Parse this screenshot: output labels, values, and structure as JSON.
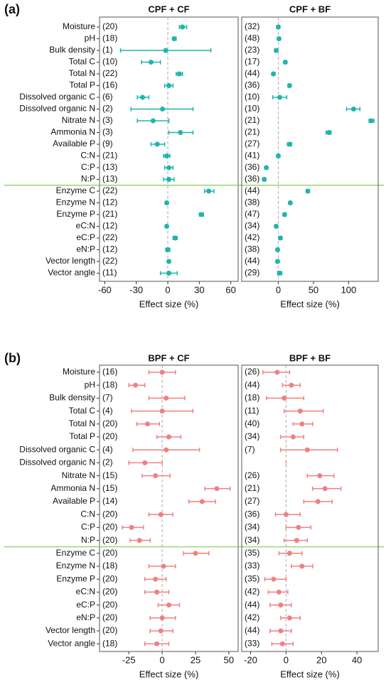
{
  "chart_data": [
    {
      "type": "forest",
      "panel_label": "(a)",
      "title": "CPF + CF",
      "xlabel": "Effect size (%)",
      "color": "#1fb5ac",
      "categories": [
        "Moisture",
        "pH",
        "Bulk density",
        "Total C",
        "Total N",
        "Total P",
        "Dissolved organic C",
        "Dissolved organic N",
        "Nitrate N",
        "Ammonia N",
        "Available P",
        "C:N",
        "C:P",
        "N:P",
        "Enzyme C",
        "Enzyme N",
        "Enzyme P",
        "eC:N",
        "eC:P",
        "eN:P",
        "Vector length",
        "Vector angle"
      ],
      "n_labels": [
        "(20)",
        "(18)",
        "(1)",
        "(10)",
        "(22)",
        "(16)",
        "(6)",
        "(2)",
        "(3)",
        "(3)",
        "(9)",
        "(21)",
        "(13)",
        "(13)",
        "(22)",
        "(12)",
        "(21)",
        "(12)",
        "(22)",
        "(12)",
        "(22)",
        "(11)"
      ],
      "values": [
        14,
        6,
        -2,
        -16,
        11,
        1,
        -24,
        -5,
        -14,
        12,
        -10,
        -1,
        1,
        1,
        39,
        -1,
        32,
        -1,
        7,
        0,
        1,
        1
      ],
      "lower": [
        11,
        5,
        -45,
        -25,
        8,
        -3,
        -29,
        -35,
        -29,
        1,
        -16,
        -4,
        -3,
        -4,
        35,
        -2,
        30,
        -2,
        5,
        -2,
        0,
        -7
      ],
      "upper": [
        18,
        8,
        41,
        -7,
        14,
        5,
        -18,
        24,
        1,
        24,
        -3,
        2,
        5,
        6,
        44,
        0,
        34,
        0,
        9,
        2,
        2,
        9
      ],
      "xlim": [
        -65,
        67
      ],
      "xticks": [
        -60,
        -30,
        0,
        30,
        60
      ]
    },
    {
      "type": "forest",
      "title": "CPF + BF",
      "xlabel": "Effect size (%)",
      "color": "#1fb5ac",
      "n_labels": [
        "(32)",
        "(48)",
        "(23)",
        "(17)",
        "(44)",
        "(36)",
        "(10)",
        "(10)",
        "(21)",
        "(21)",
        "(27)",
        "(41)",
        "(36)",
        "(36)",
        "(44)",
        "(38)",
        "(47)",
        "(34)",
        "(42)",
        "(38)",
        "(44)",
        "(29)"
      ],
      "values": [
        0,
        1,
        -3,
        10,
        -7,
        16,
        2,
        107,
        132,
        72,
        16,
        0,
        -17,
        -20,
        42,
        17,
        9,
        -3,
        3,
        -1,
        -1,
        2
      ],
      "lower": [
        -2,
        -1,
        -5,
        8,
        -9,
        14,
        -8,
        97,
        129,
        68,
        13,
        -2,
        -19,
        -22,
        40,
        15,
        7,
        -4,
        1,
        -3,
        -3,
        -1
      ],
      "upper": [
        2,
        3,
        -1,
        12,
        -5,
        18,
        12,
        116,
        136,
        75,
        19,
        2,
        -15,
        -18,
        44,
        19,
        11,
        -2,
        5,
        1,
        1,
        5
      ],
      "xlim": [
        -52,
        142
      ],
      "xticks": [
        0,
        50,
        100
      ]
    },
    {
      "type": "forest",
      "panel_label": "(b)",
      "title": "BPF + CF",
      "xlabel": "Effect size (%)",
      "color": "#f08080",
      "categories": [
        "Moisture",
        "pH",
        "Bulk density",
        "Total C",
        "Total N",
        "Total P",
        "Dissolved organic C",
        "Dissolved organic N",
        "Nitrate N",
        "Ammonia N",
        "Available P",
        "C:N",
        "C:P",
        "N:P",
        "Enzyme C",
        "Enzyme N",
        "Enzyme P",
        "eC:N",
        "eC:P",
        "eN:P",
        "Vector length",
        "Vector angle"
      ],
      "n_labels": [
        "(16)",
        "(18)",
        "(7)",
        "(4)",
        "(20)",
        "(20)",
        "(4)",
        "(2)",
        "(15)",
        "(15)",
        "(14)",
        "(20)",
        "(20)",
        "(20)",
        "(20)",
        "(18)",
        "(20)",
        "(20)",
        "(20)",
        "(20)",
        "(20)",
        "(18)"
      ],
      "values": [
        0,
        -20,
        3,
        0,
        -11,
        5,
        3,
        -13,
        -5,
        41,
        30,
        -1,
        -23,
        -17,
        25,
        1,
        -5,
        -4,
        5,
        0,
        -1,
        -4
      ],
      "lower": [
        -10,
        -25,
        -10,
        -23,
        -19,
        -4,
        -22,
        -25,
        -15,
        32,
        20,
        -10,
        -30,
        -24,
        16,
        -10,
        -13,
        -13,
        -3,
        -9,
        -9,
        -13
      ],
      "upper": [
        10,
        -13,
        17,
        23,
        -2,
        14,
        28,
        0,
        6,
        51,
        40,
        8,
        -14,
        -9,
        35,
        10,
        3,
        5,
        13,
        10,
        8,
        5
      ],
      "xlim": [
        -47,
        57
      ],
      "xticks": [
        -25,
        0,
        25,
        50
      ]
    },
    {
      "type": "forest",
      "title": "BPF + BF",
      "xlabel": "Effect size (%)",
      "color": "#f08080",
      "n_labels": [
        "(26)",
        "(44)",
        "(18)",
        "(11)",
        "(40)",
        "(34)",
        "(7)",
        null,
        "(26)",
        "(21)",
        "(27)",
        "(36)",
        "(34)",
        "(34)",
        "(35)",
        "(33)",
        "(35)",
        "(42)",
        "(44)",
        "(42)",
        "(44)",
        "(33)"
      ],
      "values": [
        -5,
        3,
        -1,
        8,
        9,
        4,
        12,
        null,
        19,
        22,
        18,
        0,
        7,
        6,
        2,
        9,
        -7,
        -4,
        -3,
        2,
        -3,
        -2
      ],
      "lower": [
        -13,
        -2,
        -11,
        -1,
        4,
        -3,
        -3,
        null,
        12,
        15,
        10,
        -6,
        0,
        -1,
        -4,
        3,
        -12,
        -10,
        -9,
        -3,
        -9,
        -8
      ],
      "upper": [
        2,
        8,
        10,
        21,
        15,
        10,
        29,
        null,
        27,
        31,
        26,
        8,
        14,
        12,
        9,
        15,
        0,
        1,
        3,
        8,
        3,
        4
      ],
      "xlim": [
        -25,
        52
      ],
      "xticks": [
        -20,
        0,
        20,
        40
      ]
    }
  ]
}
